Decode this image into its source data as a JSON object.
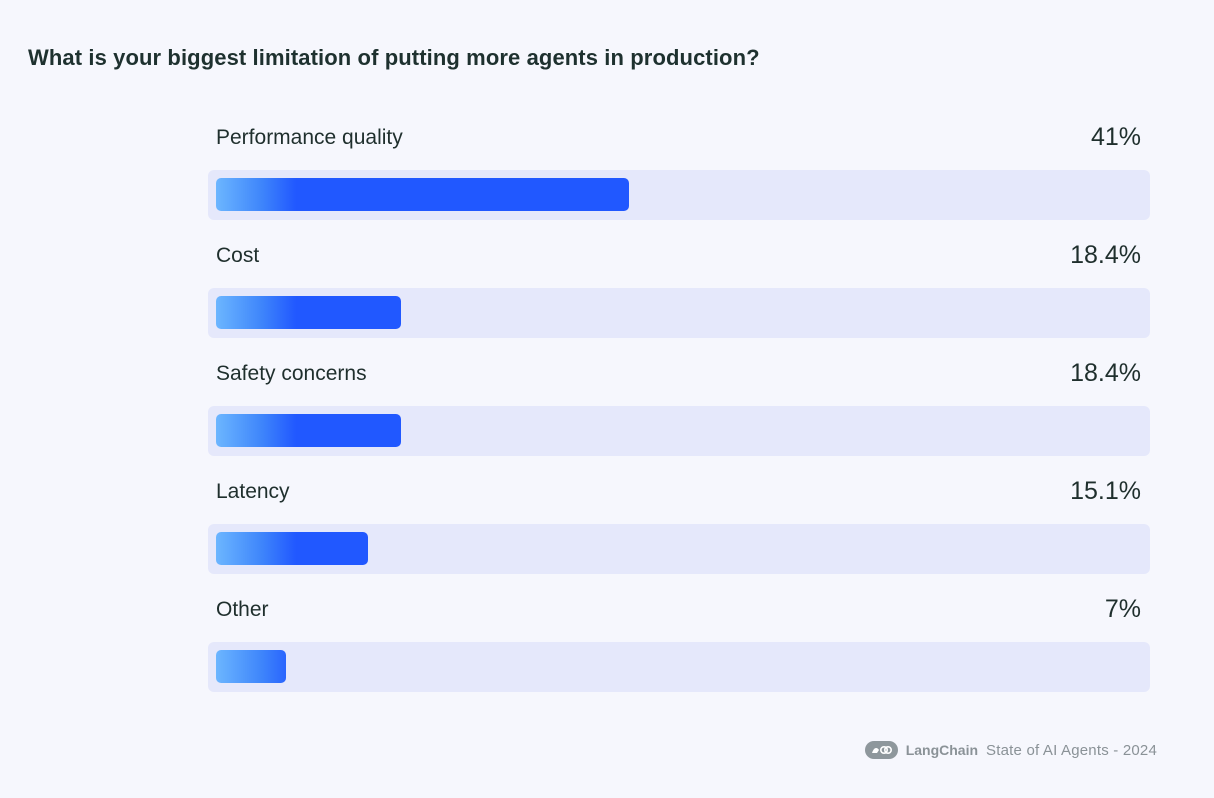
{
  "title": "What is your biggest limitation of putting more agents in production?",
  "footer": {
    "brand": "LangChain",
    "report": "State of AI Agents - 2024",
    "logo_icon": "langchain-parrot-link-icon"
  },
  "colors": {
    "background": "#f6f7fd",
    "track": "#e5e8fb",
    "bar_start": "#6cb6ff",
    "bar_end": "#2158ff",
    "text": "#1f2f2d",
    "footer_text": "#8a9297"
  },
  "chart_data": {
    "type": "bar",
    "orientation": "horizontal",
    "title": "What is your biggest limitation of putting more agents in production?",
    "categories": [
      "Performance quality",
      "Cost",
      "Safety concerns",
      "Latency",
      "Other"
    ],
    "values": [
      41,
      18.4,
      18.4,
      15.1,
      7
    ],
    "value_labels": [
      "41%",
      "18.4%",
      "18.4%",
      "15.1%",
      "7%"
    ],
    "unit": "%",
    "xlim": [
      0,
      92
    ],
    "grid": false,
    "legend": "none"
  }
}
